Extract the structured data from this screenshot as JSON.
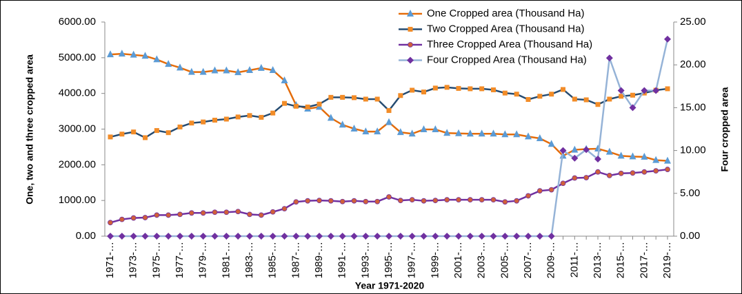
{
  "chart_data": {
    "type": "line",
    "y_axis_label": "One, two and three cropped area",
    "y2_axis_label": "Four cropped area",
    "x_axis_label": "Year 1971-2020",
    "categories": [
      "1971-…",
      null,
      "1973-…",
      null,
      "1975-…",
      null,
      "1977-…",
      null,
      "1979-…",
      null,
      "1981-…",
      null,
      "1983-…",
      null,
      "1985-…",
      null,
      "1987-…",
      null,
      "1989-…",
      null,
      "1991-…",
      null,
      "1993-…",
      null,
      "1995-…",
      null,
      "1997-…",
      null,
      "1999-…",
      null,
      "2001-…",
      null,
      "2003-…",
      null,
      "2005-…",
      null,
      "2007-…",
      null,
      "2009-…",
      null,
      "2011-…",
      null,
      "2013-…",
      null,
      "2015-…",
      null,
      "2017-…",
      null,
      "2019-…"
    ],
    "ylim": [
      0,
      6000
    ],
    "yticks": [
      {
        "value": 0,
        "label": "0.00"
      },
      {
        "value": 1000,
        "label": "1000.00"
      },
      {
        "value": 2000,
        "label": "2000.00"
      },
      {
        "value": 3000,
        "label": "3000.00"
      },
      {
        "value": 4000,
        "label": "4000.00"
      },
      {
        "value": 5000,
        "label": "5000.00"
      },
      {
        "value": 6000,
        "label": "6000.00"
      }
    ],
    "y2lim": [
      0,
      25
    ],
    "y2ticks": [
      {
        "value": 0,
        "label": "0.00"
      },
      {
        "value": 5,
        "label": "5.00"
      },
      {
        "value": 10,
        "label": "10.00"
      },
      {
        "value": 15,
        "label": "15.00"
      },
      {
        "value": 20,
        "label": "20.00"
      },
      {
        "value": 25,
        "label": "25.00"
      }
    ],
    "series": [
      {
        "name": "One Cropped area (Thousand Ha)",
        "color": "#e46c0a",
        "marker": "triangle",
        "marker_color": "#5b9bd5",
        "values": [
          5090,
          5110,
          5080,
          5050,
          4950,
          4820,
          4720,
          4600,
          4600,
          4640,
          4640,
          4590,
          4650,
          4710,
          4650,
          4360,
          3670,
          3570,
          3620,
          3310,
          3120,
          3010,
          2930,
          2930,
          3190,
          2910,
          2870,
          2990,
          2990,
          2890,
          2880,
          2870,
          2870,
          2870,
          2850,
          2850,
          2790,
          2740,
          2580,
          2250,
          2420,
          2440,
          2450,
          2360,
          2250,
          2230,
          2220,
          2130,
          2110
        ]
      },
      {
        "name": "Two Cropped Area (Thousand Ha)",
        "color": "#254b71",
        "marker": "square",
        "marker_color": "#f28c28",
        "values": [
          2780,
          2860,
          2920,
          2760,
          2960,
          2900,
          3060,
          3170,
          3200,
          3250,
          3280,
          3340,
          3380,
          3330,
          3450,
          3720,
          3640,
          3620,
          3700,
          3890,
          3890,
          3880,
          3840,
          3840,
          3520,
          3940,
          4090,
          4040,
          4150,
          4170,
          4140,
          4130,
          4130,
          4100,
          4010,
          3980,
          3830,
          3920,
          3980,
          4110,
          3840,
          3820,
          3690,
          3840,
          3920,
          3950,
          4010,
          4090,
          4130
        ]
      },
      {
        "name": "Three Cropped Area (Thousand Ha)",
        "color": "#7030a0",
        "marker": "circle",
        "marker_color": "#d0603a",
        "values": [
          380,
          470,
          510,
          520,
          590,
          590,
          610,
          650,
          650,
          670,
          670,
          690,
          610,
          590,
          680,
          770,
          960,
          990,
          1000,
          990,
          970,
          990,
          970,
          970,
          1100,
          1000,
          1020,
          990,
          1000,
          1020,
          1020,
          1020,
          1020,
          1020,
          960,
          990,
          1130,
          1270,
          1300,
          1480,
          1630,
          1640,
          1800,
          1700,
          1760,
          1770,
          1800,
          1830,
          1870
        ]
      },
      {
        "name": "Four Cropped Area (Thousand Ha)",
        "color": "#95b3d7",
        "marker": "diamond",
        "marker_color": "#7030a0",
        "axis": "y2",
        "values": [
          0,
          0,
          0,
          0,
          0,
          0,
          0,
          0,
          0,
          0,
          0,
          0,
          0,
          0,
          0,
          0,
          0,
          0,
          0,
          0,
          0,
          0,
          0,
          0,
          0,
          0,
          0,
          0,
          0,
          0,
          0,
          0,
          0,
          0,
          0,
          0,
          0,
          0,
          0,
          10.0,
          9.1,
          10.1,
          9.0,
          20.8,
          17.0,
          15.0,
          17.0,
          17.0,
          23.0
        ]
      }
    ]
  }
}
